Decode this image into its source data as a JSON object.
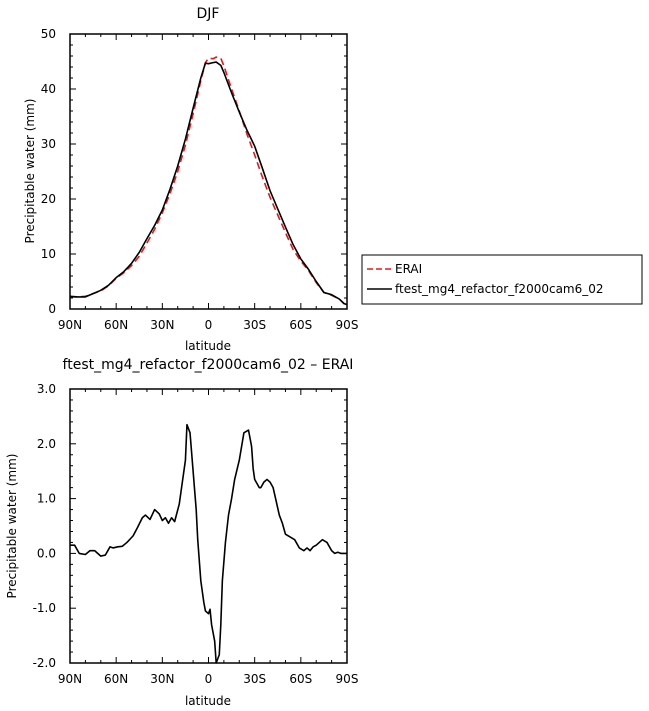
{
  "chart_data": [
    {
      "type": "line",
      "title": "DJF",
      "xlabel": "latitude",
      "ylabel": "Precipitable water (mm)",
      "xlim": [
        90,
        -90
      ],
      "ylim": [
        0,
        50
      ],
      "x_tick_values": [
        90,
        60,
        30,
        0,
        -30,
        -60,
        -90
      ],
      "x_tick_labels": [
        "90N",
        "60N",
        "30N",
        "0",
        "30S",
        "60S",
        "90S"
      ],
      "y_ticks": [
        0,
        10,
        20,
        30,
        40,
        50
      ],
      "y_tick_labels": [
        "0",
        "10",
        "20",
        "30",
        "40",
        "50"
      ],
      "legend_position": "outside-right",
      "series": [
        {
          "name": "ERAI",
          "color": "#e8161b",
          "dash": "dashed",
          "x": [
            90,
            85,
            80,
            75,
            70,
            65,
            60,
            55,
            50,
            45,
            40,
            35,
            30,
            25,
            20,
            15,
            10,
            5,
            2,
            0,
            -3,
            -5,
            -8,
            -10,
            -15,
            -20,
            -25,
            -30,
            -35,
            -40,
            -45,
            -50,
            -55,
            -60,
            -65,
            -70,
            -75,
            -80,
            -85,
            -88,
            -90
          ],
          "y": [
            2.2,
            2.2,
            2.3,
            2.8,
            3.3,
            4.2,
            5.6,
            6.6,
            7.9,
            9.6,
            12,
            14.5,
            17.5,
            21,
            25,
            29.8,
            35.5,
            41.5,
            44.8,
            45.6,
            45.5,
            45.8,
            45.6,
            44.2,
            40,
            36,
            31.8,
            28,
            24,
            20.3,
            17.1,
            13.9,
            10.8,
            8.7,
            7,
            4.8,
            3,
            2.5,
            1.8,
            1.0,
            0.8
          ]
        },
        {
          "name": "ftest_mg4_refactor_f2000cam6_02",
          "color": "#000000",
          "dash": "solid",
          "x": [
            90,
            85,
            80,
            75,
            70,
            65,
            60,
            55,
            50,
            45,
            40,
            35,
            30,
            25,
            20,
            15,
            10,
            5,
            2,
            0,
            -3,
            -5,
            -8,
            -10,
            -15,
            -20,
            -25,
            -30,
            -35,
            -40,
            -45,
            -50,
            -55,
            -60,
            -65,
            -70,
            -75,
            -80,
            -85,
            -88,
            -90
          ],
          "y": [
            2.3,
            2.2,
            2.2,
            2.8,
            3.4,
            4.3,
            5.7,
            6.8,
            8.3,
            10.3,
            12.8,
            15.2,
            18,
            21.8,
            26,
            30.9,
            36.5,
            42,
            44.7,
            44.6,
            44.8,
            44.9,
            44.3,
            43,
            39.3,
            35.8,
            32.5,
            29.6,
            25.6,
            21.5,
            18.2,
            14.9,
            11.7,
            9.1,
            7.2,
            5,
            3,
            2.6,
            1.8,
            1.0,
            0.8
          ]
        }
      ]
    },
    {
      "type": "line",
      "title": "ftest_mg4_refactor_f2000cam6_02 – ERAI",
      "xlabel": "latitude",
      "ylabel": "Precipitable water (mm)",
      "xlim": [
        90,
        -90
      ],
      "ylim": [
        -2.0,
        3.0
      ],
      "x_tick_values": [
        90,
        60,
        30,
        0,
        -30,
        -60,
        -90
      ],
      "x_tick_labels": [
        "90N",
        "60N",
        "30N",
        "0",
        "30S",
        "60S",
        "90S"
      ],
      "y_ticks": [
        -2.0,
        -1.0,
        0.0,
        1.0,
        2.0,
        3.0
      ],
      "y_tick_labels": [
        "-2.0",
        "-1.0",
        "0.0",
        "1.0",
        "2.0",
        "3.0"
      ],
      "series": [
        {
          "color": "#000000",
          "dash": "solid",
          "x": [
            90,
            87,
            84,
            80,
            77,
            74,
            70,
            67,
            64,
            62,
            59,
            56,
            53,
            49,
            46,
            43,
            41,
            38,
            35,
            32,
            30,
            28,
            26,
            24,
            22,
            19,
            17,
            15,
            14,
            12,
            10,
            8,
            7,
            5,
            3,
            2,
            0,
            -1,
            -2,
            -4,
            -5,
            -7,
            -8,
            -9,
            -11,
            -13,
            -15,
            -17,
            -20,
            -23,
            -26,
            -28,
            -29,
            -30,
            -32,
            -33,
            -34,
            -36,
            -38,
            -40,
            -42,
            -44,
            -46,
            -48,
            -50,
            -53,
            -56,
            -59,
            -62,
            -64,
            -66,
            -68,
            -70,
            -72,
            -74,
            -77,
            -80,
            -82,
            -84,
            -86,
            -88,
            -90
          ],
          "y": [
            0.15,
            0.15,
            0.0,
            -0.02,
            0.05,
            0.05,
            -0.05,
            -0.03,
            0.12,
            0.1,
            0.12,
            0.13,
            0.2,
            0.32,
            0.48,
            0.65,
            0.7,
            0.62,
            0.8,
            0.72,
            0.6,
            0.65,
            0.55,
            0.65,
            0.58,
            0.9,
            1.3,
            1.7,
            2.35,
            2.2,
            1.5,
            0.8,
            0.25,
            -0.5,
            -0.9,
            -1.05,
            -1.1,
            -1.02,
            -1.3,
            -1.6,
            -2.0,
            -1.85,
            -1.3,
            -0.5,
            0.2,
            0.7,
            1.0,
            1.35,
            1.7,
            2.2,
            2.25,
            1.95,
            1.55,
            1.35,
            1.25,
            1.2,
            1.2,
            1.3,
            1.35,
            1.3,
            1.2,
            0.95,
            0.7,
            0.55,
            0.35,
            0.3,
            0.25,
            0.1,
            0.05,
            0.1,
            0.05,
            0.12,
            0.15,
            0.2,
            0.25,
            0.2,
            0.05,
            0.0,
            0.02,
            0.0,
            0.0,
            0.0
          ]
        }
      ]
    }
  ]
}
